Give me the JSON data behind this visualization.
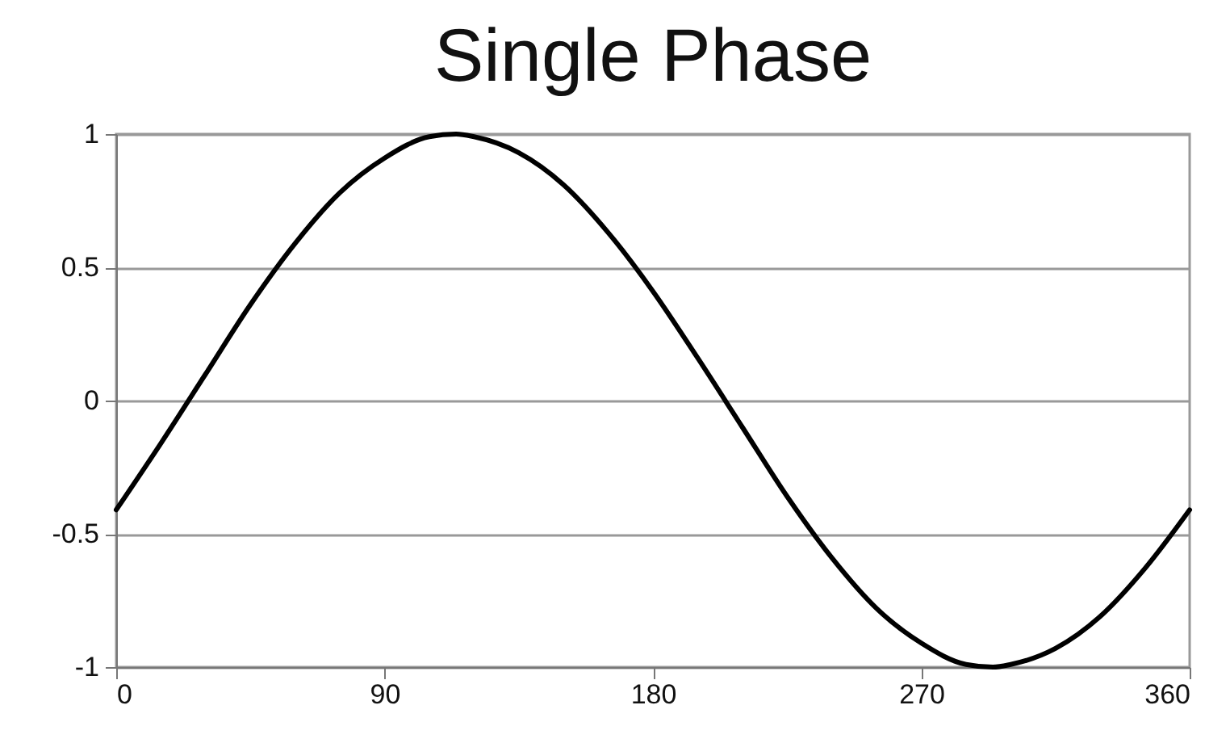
{
  "chart_data": {
    "type": "line",
    "title": "Single Phase",
    "x": [
      0,
      15,
      30,
      45,
      60,
      75,
      90,
      105,
      114,
      120,
      135,
      150,
      165,
      180,
      195,
      210,
      225,
      240,
      255,
      270,
      285,
      294,
      300,
      315,
      330,
      345,
      360
    ],
    "series": [
      {
        "color": "#000000",
        "values": [
          -0.41,
          -0.16,
          0.1,
          0.36,
          0.59,
          0.78,
          0.91,
          0.99,
          1,
          0.99,
          0.93,
          0.81,
          0.63,
          0.41,
          0.16,
          -0.1,
          -0.36,
          -0.59,
          -0.78,
          -0.91,
          -0.99,
          -1,
          -0.99,
          -0.93,
          -0.81,
          -0.63,
          -0.41
        ]
      }
    ],
    "xlim": [
      0,
      360
    ],
    "xticks": [
      0,
      90,
      180,
      270,
      360
    ],
    "ylim": [
      -1,
      1
    ],
    "yticks": [
      -1,
      -0.5,
      0,
      0.5,
      1
    ],
    "grid": "y",
    "legend": false,
    "marker": "none",
    "line_style": "solid"
  }
}
